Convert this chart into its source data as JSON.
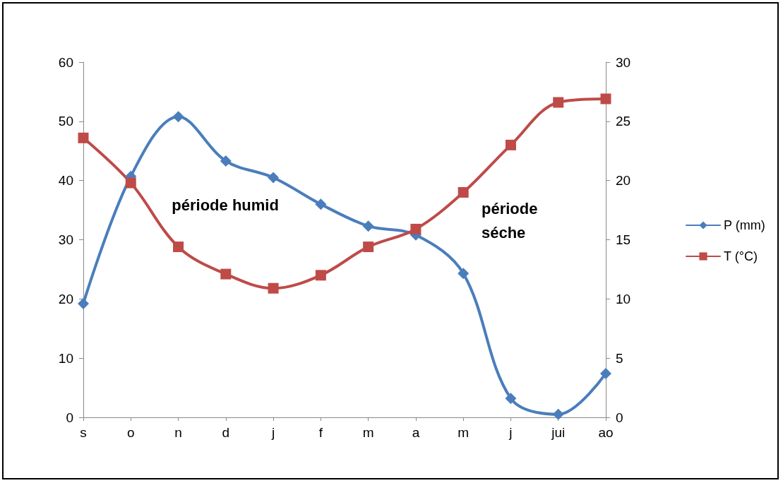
{
  "chart_data": {
    "type": "line",
    "categories": [
      "s",
      "o",
      "n",
      "d",
      "j",
      "f",
      "m",
      "a",
      "m",
      "j",
      "jui",
      "ao"
    ],
    "series": [
      {
        "name": "P (mm)",
        "color": "#4a7ebb",
        "marker": "diamond",
        "values": [
          19.2,
          40.7,
          50.8,
          43.3,
          40.5,
          36.0,
          32.3,
          30.8,
          24.3,
          3.2,
          0.5,
          7.4
        ]
      },
      {
        "name": "T (°C)",
        "color": "#be4b48",
        "marker": "square",
        "axis": "y2",
        "values": [
          23.6,
          19.8,
          14.4,
          12.1,
          10.9,
          12.0,
          14.4,
          15.9,
          19.0,
          23.0,
          26.6,
          26.9
        ]
      }
    ],
    "ylim": [
      0,
      60
    ],
    "yticks": [
      0,
      10,
      20,
      30,
      40,
      50,
      60
    ],
    "y2lim": [
      0,
      30
    ],
    "y2ticks": [
      0,
      5,
      10,
      15,
      20,
      25,
      30
    ],
    "grid": false,
    "legend": "right",
    "annotations": [
      "période humid",
      "période\nséche"
    ]
  }
}
